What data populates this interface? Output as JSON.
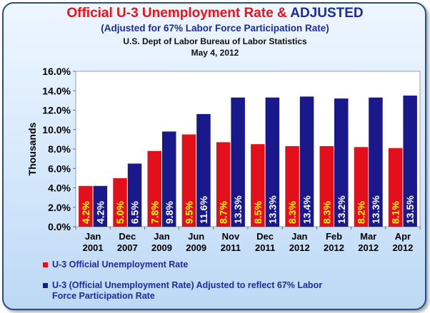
{
  "header": {
    "title_part1": "Official U-3 Unemployment Rate & ",
    "title_part2": "ADJUSTED",
    "subtitle": "(Adjusted for 67% Labor Force Participation Rate)",
    "source_line1": "U.S. Dept of Labor Bureau of Labor Statistics",
    "source_line2": "May 4, 2012"
  },
  "legend": {
    "series1_label": "U-3 Official Unemployment Rate",
    "series2_line1": "U-3 (Official Unemployment Rate) Adjusted to reflect 67% Labor",
    "series2_line2": "Force Participation Rate"
  },
  "colors": {
    "official": "#e3101b",
    "adjusted": "#19198c",
    "official_label": "#ffff00",
    "adjusted_label": "#ffffff"
  },
  "chart_data": {
    "type": "bar",
    "ylabel": "Thousands",
    "ylim": [
      0,
      16
    ],
    "y_ticks": [
      "0.0%",
      "2.0%",
      "4.0%",
      "6.0%",
      "8.0%",
      "10.0%",
      "12.0%",
      "14.0%",
      "16.0%"
    ],
    "grid": false,
    "categories": [
      [
        "Jan",
        "2001"
      ],
      [
        "Dec",
        "2007"
      ],
      [
        "Jan",
        "2009"
      ],
      [
        "Jun",
        "2009"
      ],
      [
        "Nov",
        "2011"
      ],
      [
        "Dec",
        "2011"
      ],
      [
        "Jan",
        "2012"
      ],
      [
        "Feb",
        "2012"
      ],
      [
        "Mar",
        "2012"
      ],
      [
        "Apr",
        "2012"
      ]
    ],
    "series": [
      {
        "key": "official",
        "values": [
          4.2,
          5.0,
          7.8,
          9.5,
          8.7,
          8.5,
          8.3,
          8.3,
          8.2,
          8.1
        ],
        "labels": [
          "4.2%",
          "5.0%",
          "7.8%",
          "9.5%",
          "8.7%",
          "8.5%",
          "8.3%",
          "8.3%",
          "8.2%",
          "8.1%"
        ]
      },
      {
        "key": "adjusted",
        "values": [
          4.2,
          6.5,
          9.8,
          11.6,
          13.3,
          13.3,
          13.4,
          13.2,
          13.3,
          13.5
        ],
        "labels": [
          "4.2%",
          "6.5%",
          "9.8%",
          "11.6%",
          "13.3%",
          "13.3%",
          "13.4%",
          "13.2%",
          "13.3%",
          "13.5%"
        ]
      }
    ]
  }
}
